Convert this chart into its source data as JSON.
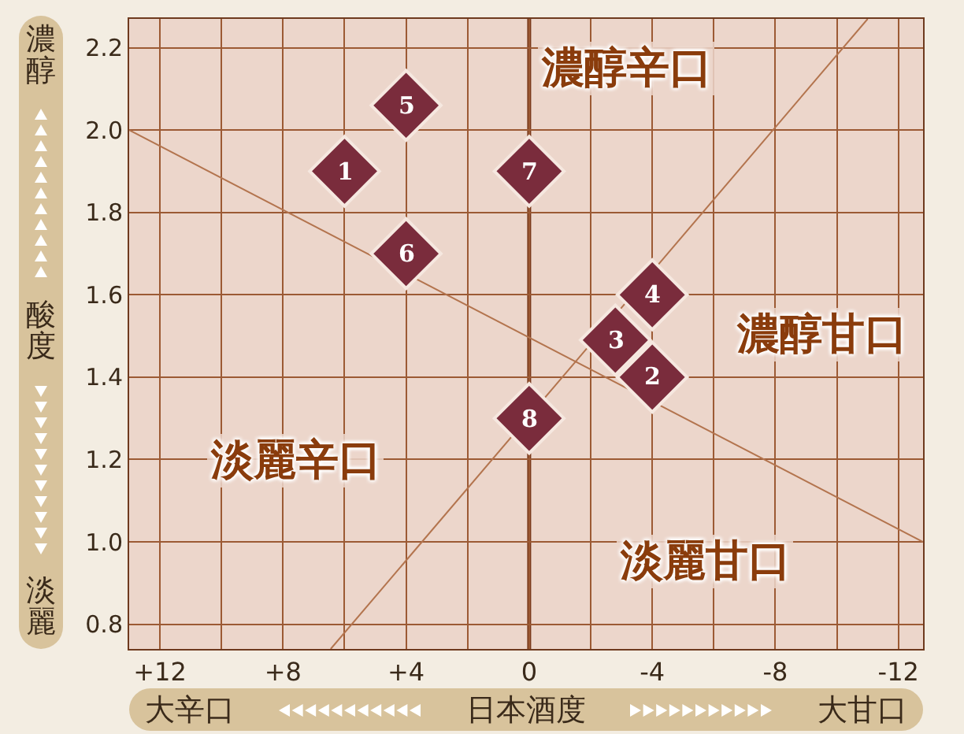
{
  "chart_data": {
    "type": "scatter",
    "xlabel": "日本酒度",
    "ylabel": "酸度",
    "xlim": [
      13,
      -12.8
    ],
    "ylim": [
      0.74,
      2.27
    ],
    "xticks": [
      {
        "value": 12,
        "label": "+12"
      },
      {
        "value": 10,
        "label": null
      },
      {
        "value": 8,
        "label": "+8"
      },
      {
        "value": 6,
        "label": null
      },
      {
        "value": 4,
        "label": "+4"
      },
      {
        "value": 2,
        "label": null
      },
      0,
      {
        "value": -2,
        "label": null
      },
      -4,
      {
        "value": -6,
        "label": null
      },
      -8,
      {
        "value": -10,
        "label": null
      },
      -12
    ],
    "yticks": [
      {
        "value": 0.8,
        "label": "0.8"
      },
      {
        "value": 1.0,
        "label": "1.0"
      },
      {
        "value": 1.2,
        "label": "1.2"
      },
      {
        "value": 1.4,
        "label": "1.4"
      },
      {
        "value": 1.6,
        "label": "1.6"
      },
      {
        "value": 1.8,
        "label": "1.8"
      },
      {
        "value": 2.0,
        "label": "2.0"
      },
      {
        "value": 2.2,
        "label": "2.2"
      }
    ],
    "grid": true,
    "marker": "diamond",
    "series": [
      {
        "type": "line",
        "marker": "none",
        "color": "#b3744e",
        "x": [
          13,
          -12.8
        ],
        "values": [
          2.0,
          1.0
        ]
      },
      {
        "type": "line",
        "marker": "none",
        "color": "#b3744e",
        "x": [
          6.45,
          -11.0
        ],
        "values": [
          0.74,
          2.27
        ]
      },
      {
        "color": "#7a2c3c",
        "x": [
          6,
          -4,
          -2.8,
          -4,
          4,
          4,
          0,
          0
        ],
        "values": [
          1.9,
          1.4,
          1.49,
          1.6,
          2.06,
          1.7,
          1.9,
          1.3
        ]
      }
    ],
    "ref_lines": [
      {
        "axis": "x",
        "value": 0,
        "color": "#7a3a1c"
      }
    ],
    "annotations": [
      {
        "text": "1",
        "x": 6,
        "y": 1.9
      },
      {
        "text": "2",
        "x": -4,
        "y": 1.4
      },
      {
        "text": "3",
        "x": -2.8,
        "y": 1.49
      },
      {
        "text": "4",
        "x": -4,
        "y": 1.6
      },
      {
        "text": "5",
        "x": 4,
        "y": 2.06
      },
      {
        "text": "6",
        "x": 4,
        "y": 1.7
      },
      {
        "text": "7",
        "x": 0,
        "y": 1.9
      },
      {
        "text": "8",
        "x": 0,
        "y": 1.3
      },
      "濃醇辛口",
      "濃醇甘口",
      "淡麗辛口",
      "淡麗甘口",
      "大辛口",
      "大甘口",
      "濃醇",
      "淡麗"
    ]
  }
}
